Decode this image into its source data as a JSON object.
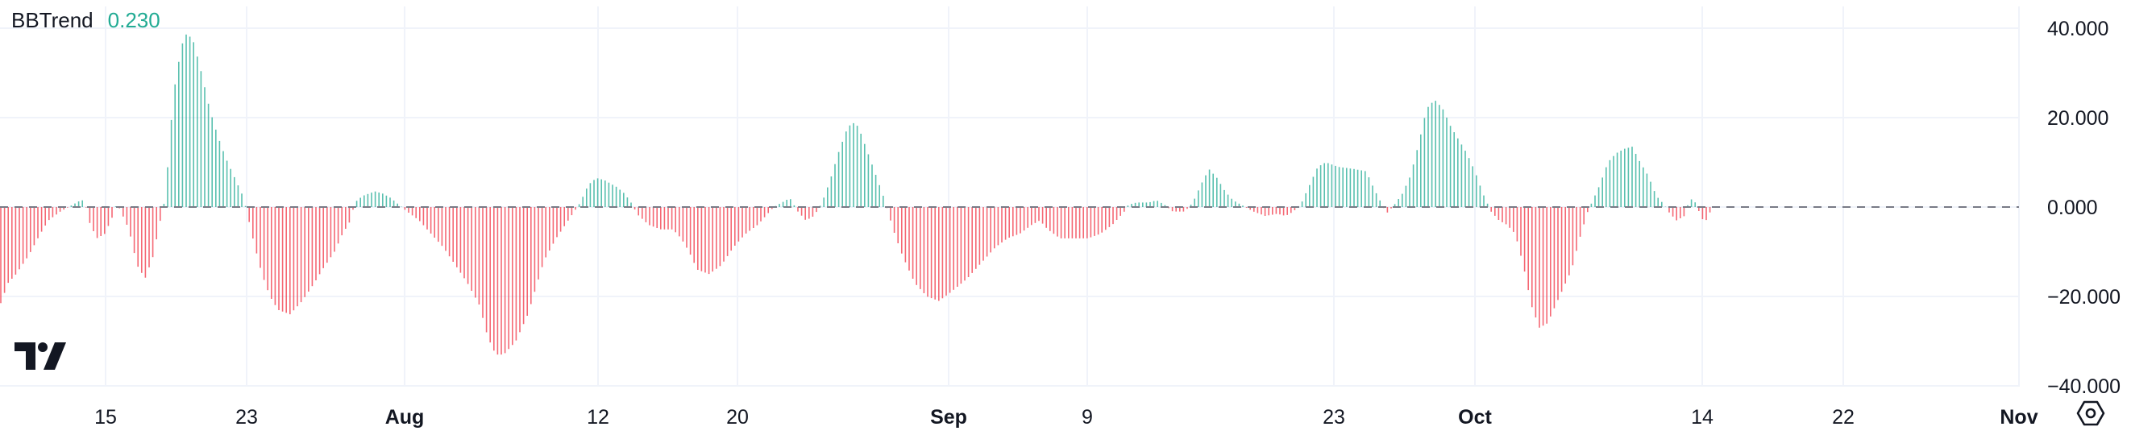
{
  "legend": {
    "title": "BBTrend",
    "value": "0.230"
  },
  "colors": {
    "positive": "#22ab94",
    "negative": "#f23645",
    "zero_line": "#787b86",
    "grid": "#f0f3fa",
    "axis_text": "#131722",
    "value_text": "#22ab94"
  },
  "icons": {
    "logo": "tradingview-logo-icon",
    "settings": "settings-hexagon-icon"
  },
  "chart_data": {
    "type": "bar",
    "title": "BBTrend",
    "ylim": [
      -40,
      40
    ],
    "y_ticks": [
      {
        "value": 40,
        "label": "40.000"
      },
      {
        "value": 20,
        "label": "20.000"
      },
      {
        "value": 0,
        "label": "0.000"
      },
      {
        "value": -20,
        "label": "−20.000"
      },
      {
        "value": -40,
        "label": "−40.000"
      }
    ],
    "x_ticks": [
      {
        "label": "15",
        "bold": false
      },
      {
        "label": "23",
        "bold": false
      },
      {
        "label": "Aug",
        "bold": true
      },
      {
        "label": "12",
        "bold": false
      },
      {
        "label": "20",
        "bold": false
      },
      {
        "label": "Sep",
        "bold": true
      },
      {
        "label": "9",
        "bold": false
      },
      {
        "label": "23",
        "bold": false
      },
      {
        "label": "Oct",
        "bold": true
      },
      {
        "label": "14",
        "bold": false
      },
      {
        "label": "22",
        "bold": false
      },
      {
        "label": "Nov",
        "bold": true
      }
    ],
    "grid": true,
    "zero_line": "dashed",
    "keyframes": [
      [
        0,
        -22
      ],
      [
        10,
        -17
      ],
      [
        20,
        -15
      ],
      [
        35,
        -11
      ],
      [
        50,
        -6
      ],
      [
        60,
        -3
      ],
      [
        75,
        -1
      ],
      [
        90,
        0.5
      ],
      [
        100,
        1.5
      ],
      [
        105,
        1.5
      ],
      [
        110,
        -3
      ],
      [
        120,
        -7
      ],
      [
        130,
        -6
      ],
      [
        140,
        -2
      ],
      [
        145,
        1
      ],
      [
        150,
        -1
      ],
      [
        160,
        -5
      ],
      [
        170,
        -13
      ],
      [
        180,
        -16
      ],
      [
        190,
        -11
      ],
      [
        200,
        -2
      ],
      [
        205,
        2
      ],
      [
        215,
        25
      ],
      [
        225,
        36
      ],
      [
        232,
        39
      ],
      [
        240,
        37
      ],
      [
        250,
        30
      ],
      [
        260,
        22
      ],
      [
        270,
        16
      ],
      [
        280,
        11
      ],
      [
        290,
        7
      ],
      [
        300,
        3
      ],
      [
        305,
        0
      ],
      [
        315,
        -8
      ],
      [
        325,
        -15
      ],
      [
        335,
        -20
      ],
      [
        345,
        -23
      ],
      [
        360,
        -24
      ],
      [
        375,
        -21
      ],
      [
        390,
        -17
      ],
      [
        400,
        -14
      ],
      [
        415,
        -10
      ],
      [
        425,
        -6
      ],
      [
        435,
        -3
      ],
      [
        440,
        1
      ],
      [
        450,
        2.5
      ],
      [
        465,
        3.5
      ],
      [
        475,
        3
      ],
      [
        485,
        2
      ],
      [
        495,
        0.5
      ],
      [
        505,
        -1
      ],
      [
        520,
        -3
      ],
      [
        535,
        -6
      ],
      [
        550,
        -9
      ],
      [
        565,
        -13
      ],
      [
        580,
        -17
      ],
      [
        595,
        -22
      ],
      [
        605,
        -29
      ],
      [
        615,
        -33
      ],
      [
        625,
        -33
      ],
      [
        640,
        -30
      ],
      [
        655,
        -24
      ],
      [
        665,
        -18
      ],
      [
        675,
        -12
      ],
      [
        690,
        -7
      ],
      [
        705,
        -3
      ],
      [
        720,
        1
      ],
      [
        730,
        5
      ],
      [
        740,
        6.5
      ],
      [
        750,
        6
      ],
      [
        765,
        4.5
      ],
      [
        775,
        3
      ],
      [
        785,
        0.5
      ],
      [
        790,
        -1.5
      ],
      [
        805,
        -4
      ],
      [
        820,
        -5
      ],
      [
        835,
        -5
      ],
      [
        845,
        -7
      ],
      [
        855,
        -10
      ],
      [
        865,
        -14
      ],
      [
        880,
        -15
      ],
      [
        895,
        -13
      ],
      [
        910,
        -9
      ],
      [
        925,
        -6
      ],
      [
        940,
        -4
      ],
      [
        950,
        -2
      ],
      [
        960,
        0
      ],
      [
        970,
        1
      ],
      [
        980,
        2
      ],
      [
        990,
        -1
      ],
      [
        1000,
        -3
      ],
      [
        1010,
        -2
      ],
      [
        1020,
        1
      ],
      [
        1030,
        6
      ],
      [
        1040,
        12
      ],
      [
        1050,
        17
      ],
      [
        1057,
        19
      ],
      [
        1065,
        18
      ],
      [
        1075,
        13
      ],
      [
        1085,
        8
      ],
      [
        1095,
        3
      ],
      [
        1100,
        0
      ],
      [
        1110,
        -6
      ],
      [
        1120,
        -11
      ],
      [
        1135,
        -17
      ],
      [
        1150,
        -20
      ],
      [
        1165,
        -21
      ],
      [
        1180,
        -19
      ],
      [
        1200,
        -16
      ],
      [
        1220,
        -12
      ],
      [
        1235,
        -9
      ],
      [
        1250,
        -7
      ],
      [
        1265,
        -6
      ],
      [
        1280,
        -4
      ],
      [
        1290,
        -3
      ],
      [
        1300,
        -5
      ],
      [
        1315,
        -7
      ],
      [
        1335,
        -7
      ],
      [
        1350,
        -7
      ],
      [
        1365,
        -6
      ],
      [
        1380,
        -4
      ],
      [
        1395,
        -1
      ],
      [
        1400,
        0.5
      ],
      [
        1410,
        1
      ],
      [
        1425,
        1
      ],
      [
        1435,
        1.5
      ],
      [
        1445,
        0.5
      ],
      [
        1455,
        -1
      ],
      [
        1470,
        -1
      ],
      [
        1480,
        1
      ],
      [
        1490,
        5
      ],
      [
        1500,
        8.5
      ],
      [
        1510,
        6.5
      ],
      [
        1520,
        3.5
      ],
      [
        1530,
        1.5
      ],
      [
        1540,
        0.5
      ],
      [
        1555,
        -1
      ],
      [
        1570,
        -2
      ],
      [
        1585,
        -1.5
      ],
      [
        1595,
        -2
      ],
      [
        1605,
        -1
      ],
      [
        1615,
        1
      ],
      [
        1625,
        5
      ],
      [
        1635,
        9
      ],
      [
        1645,
        10
      ],
      [
        1660,
        9
      ],
      [
        1680,
        8.5
      ],
      [
        1695,
        8
      ],
      [
        1705,
        4
      ],
      [
        1715,
        0.5
      ],
      [
        1720,
        -1.5
      ],
      [
        1730,
        0.5
      ],
      [
        1740,
        3
      ],
      [
        1750,
        7
      ],
      [
        1760,
        14
      ],
      [
        1770,
        22
      ],
      [
        1780,
        24
      ],
      [
        1790,
        22
      ],
      [
        1800,
        18
      ],
      [
        1810,
        15
      ],
      [
        1820,
        12
      ],
      [
        1830,
        8
      ],
      [
        1840,
        3
      ],
      [
        1850,
        -1
      ],
      [
        1860,
        -3
      ],
      [
        1870,
        -4
      ],
      [
        1880,
        -6
      ],
      [
        1890,
        -13
      ],
      [
        1900,
        -22
      ],
      [
        1910,
        -27
      ],
      [
        1920,
        -26
      ],
      [
        1935,
        -20
      ],
      [
        1950,
        -14
      ],
      [
        1960,
        -7
      ],
      [
        1970,
        -1
      ],
      [
        1975,
        1
      ],
      [
        1985,
        5
      ],
      [
        1995,
        10
      ],
      [
        2005,
        12
      ],
      [
        2015,
        13
      ],
      [
        2025,
        13.5
      ],
      [
        2035,
        10
      ],
      [
        2045,
        7
      ],
      [
        2055,
        2.5
      ],
      [
        2065,
        0.5
      ],
      [
        2070,
        -1
      ],
      [
        2080,
        -3
      ],
      [
        2090,
        -2
      ],
      [
        2095,
        1
      ],
      [
        2100,
        2
      ],
      [
        2105,
        0.5
      ],
      [
        2110,
        -2
      ],
      [
        2115,
        -3.5
      ],
      [
        2120,
        -2
      ],
      [
        2125,
        0.5
      ]
    ]
  }
}
